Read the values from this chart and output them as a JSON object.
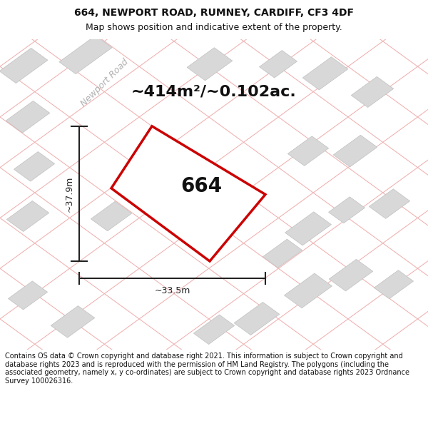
{
  "title": "664, NEWPORT ROAD, RUMNEY, CARDIFF, CF3 4DF",
  "subtitle": "Map shows position and indicative extent of the property.",
  "footer": "Contains OS data © Crown copyright and database right 2021. This information is subject to Crown copyright and database rights 2023 and is reproduced with the permission of HM Land Registry. The polygons (including the associated geometry, namely x, y co-ordinates) are subject to Crown copyright and database rights 2023 Ordnance Survey 100026316.",
  "area_text": "~414m²/~0.102ac.",
  "road_label": "Newport Road",
  "property_label": "664",
  "dim_width": "~33.5m",
  "dim_height": "~37.9m",
  "map_bg": "#eeeeee",
  "plot_color": "#cc0000",
  "grid_color_light": "#f0b0b0",
  "grid_color_gray": "#d3d3d3",
  "building_color": "#d8d8d8",
  "building_edge": "#c0c0c0",
  "title_fontsize": 10,
  "subtitle_fontsize": 9,
  "footer_fontsize": 7,
  "area_fontsize": 16,
  "label_fontsize": 20,
  "dim_fontsize": 9,
  "road_fontsize": 9
}
